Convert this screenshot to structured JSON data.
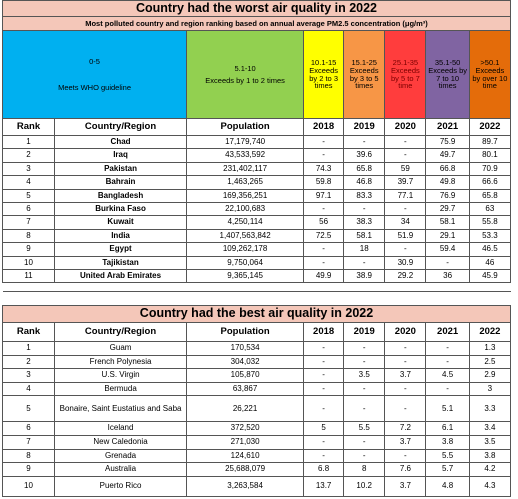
{
  "worst": {
    "title": "Country had the worst air quality in 2022",
    "subtitle": "Most polluted country and region ranking based on annual average PM2.5 concentration (μg/m³)",
    "legend": [
      {
        "range": "0-5",
        "desc": "Meets WHO guideline",
        "color": "#00b0f0"
      },
      {
        "range": "5.1-10",
        "desc": "Exceeds by 1 to 2 times",
        "color": "#92d050"
      },
      {
        "range": "10.1-15",
        "desc": "Exceeds by 2 to 3 times",
        "color": "#ffff00"
      },
      {
        "range": "15.1-25",
        "desc": "Exceeds by 3 to 5 times",
        "color": "#f79646"
      },
      {
        "range": "25.1-35",
        "desc": "Exceeds by 5 to 7 time",
        "color": "#ff3d3d"
      },
      {
        "range": "35.1-50",
        "desc": "Exceeds by 7 to 10 times",
        "color": "#8064a2"
      },
      {
        "range": ">50.1",
        "desc": "Exceeds by over 10 time",
        "color": "#e46c0a"
      }
    ],
    "headers": [
      "Rank",
      "Country/Region",
      "Population",
      "2018",
      "2019",
      "2020",
      "2021",
      "2022"
    ],
    "rows": [
      [
        "1",
        "Chad",
        "17,179,740",
        "-",
        "-",
        "-",
        "75.9",
        "89.7"
      ],
      [
        "2",
        "Iraq",
        "43,533,592",
        "-",
        "39.6",
        "-",
        "49.7",
        "80.1"
      ],
      [
        "3",
        "Pakistan",
        "231,402,117",
        "74.3",
        "65.8",
        "59",
        "66.8",
        "70.9"
      ],
      [
        "4",
        "Bahrain",
        "1,463,265",
        "59.8",
        "46.8",
        "39.7",
        "49.8",
        "66.6"
      ],
      [
        "5",
        "Bangladesh",
        "169,356,251",
        "97.1",
        "83.3",
        "77.1",
        "76.9",
        "65.8"
      ],
      [
        "6",
        "Burkina Faso",
        "22,100,683",
        "-",
        "-",
        "-",
        "29.7",
        "63"
      ],
      [
        "7",
        "Kuwait",
        "4,250,114",
        "56",
        "38.3",
        "34",
        "58.1",
        "55.8"
      ],
      [
        "8",
        "India",
        "1,407,563,842",
        "72.5",
        "58.1",
        "51.9",
        "29.1",
        "53.3"
      ],
      [
        "9",
        "Egypt",
        "109,262,178",
        "-",
        "18",
        "-",
        "59.4",
        "46.5"
      ],
      [
        "10",
        "Tajikistan",
        "9,750,064",
        "-",
        "-",
        "30.9",
        "-",
        "46"
      ],
      [
        "11",
        "United Arab Emirates",
        "9,365,145",
        "49.9",
        "38.9",
        "29.2",
        "36",
        "45.9"
      ]
    ]
  },
  "best": {
    "title": "Country had the best air quality in 2022",
    "headers": [
      "Rank",
      "Country/Region",
      "Population",
      "2018",
      "2019",
      "2020",
      "2021",
      "2022"
    ],
    "rows": [
      [
        "1",
        "Guam",
        "170,534",
        "-",
        "-",
        "-",
        "-",
        "1.3"
      ],
      [
        "2",
        "French Polynesia",
        "304,032",
        "-",
        "-",
        "-",
        "-",
        "2.5"
      ],
      [
        "3",
        "U.S. Virgin",
        "105,870",
        "-",
        "3.5",
        "3.7",
        "4.5",
        "2.9"
      ],
      [
        "4",
        "Bermuda",
        "63,867",
        "-",
        "-",
        "-",
        "-",
        "3"
      ],
      [
        "5",
        "Bonaire, Saint Eustatius and Saba",
        "26,221",
        "-",
        "-",
        "-",
        "5.1",
        "3.3"
      ],
      [
        "6",
        "Iceland",
        "372,520",
        "5",
        "5.5",
        "7.2",
        "6.1",
        "3.4"
      ],
      [
        "7",
        "New Caledonia",
        "271,030",
        "-",
        "-",
        "3.7",
        "3.8",
        "3.5"
      ],
      [
        "8",
        "Grenada",
        "124,610",
        "-",
        "-",
        "-",
        "5.5",
        "3.8"
      ],
      [
        "9",
        "Australia",
        "25,688,079",
        "6.8",
        "8",
        "7.6",
        "5.7",
        "4.2"
      ],
      [
        "10",
        "Puerto Rico",
        "3,263,584",
        "13.7",
        "10.2",
        "3.7",
        "4.8",
        "4.3"
      ]
    ]
  },
  "colors": {
    "header_bg": "#f4c7b9",
    "blue": "#00b0f0",
    "green": "#92d050",
    "yellow": "#ffff00",
    "orange": "#f79646",
    "red": "#ff3d3d",
    "purple": "#8064a2",
    "dark_orange": "#e46c0a"
  }
}
